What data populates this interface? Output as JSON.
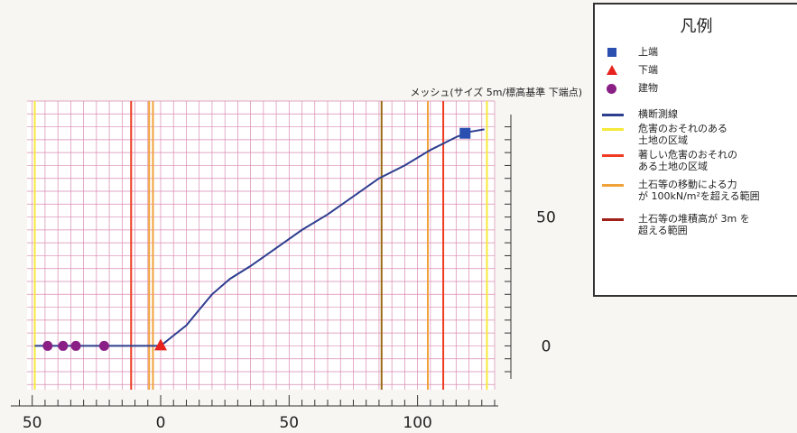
{
  "chart_data": {
    "type": "line",
    "title": "メッシュ(サイズ 5m/標高基準 下端点)",
    "xlabel": "",
    "ylabel": "",
    "xlim": [
      -52,
      130
    ],
    "ylim": [
      -17,
      95
    ],
    "grid": true,
    "x_ticks": [
      {
        "value": -50,
        "label": "50"
      },
      {
        "value": 0,
        "label": "0"
      },
      {
        "value": 50,
        "label": "50"
      },
      {
        "value": 100,
        "label": "100"
      }
    ],
    "y_ticks": [
      {
        "value": 0,
        "label": "0"
      },
      {
        "value": 50,
        "label": "50"
      }
    ],
    "series": [
      {
        "name": "横断測線",
        "color": "#2e3e8f",
        "points": [
          [
            -49,
            0
          ],
          [
            -30,
            0
          ],
          [
            -5,
            0
          ],
          [
            0,
            0
          ],
          [
            5,
            4
          ],
          [
            10,
            8
          ],
          [
            15,
            14
          ],
          [
            20,
            20
          ],
          [
            27,
            26
          ],
          [
            35,
            31
          ],
          [
            45,
            38
          ],
          [
            55,
            45
          ],
          [
            65,
            51
          ],
          [
            75,
            58
          ],
          [
            85,
            65
          ],
          [
            95,
            70
          ],
          [
            105,
            76
          ],
          [
            115,
            81
          ],
          [
            120,
            83
          ],
          [
            126,
            84
          ]
        ]
      }
    ],
    "markers": [
      {
        "name": "上端",
        "shape": "square",
        "color": "#2a4fb0",
        "points": [
          [
            118.5,
            82.5
          ]
        ]
      },
      {
        "name": "下端",
        "shape": "triangle",
        "color": "#e8221c",
        "points": [
          [
            0,
            0
          ]
        ]
      },
      {
        "name": "建物",
        "shape": "circle",
        "color": "#8a1f86",
        "points": [
          [
            -44,
            0
          ],
          [
            -38,
            0
          ],
          [
            -33,
            0
          ],
          [
            -22,
            0
          ]
        ]
      }
    ],
    "vertical_lines": [
      {
        "category": "危害のおそれのある土地の区域",
        "color": "#f5ea3a",
        "x": [
          -49,
          127
        ]
      },
      {
        "category": "著しい危害のおそれのある土地の区域",
        "color": "#ee3b22",
        "x": [
          -11.5,
          110
        ]
      },
      {
        "category": "土石等の移動による力が100kN/m²を超える範囲",
        "color": "#f0a23a",
        "x": [
          -4.5,
          -3,
          104
        ]
      },
      {
        "category": "土石等の堆積高が3mを超える範囲",
        "color": "#9a6a16",
        "x": [
          86
        ]
      }
    ]
  },
  "legend": {
    "title": "凡例",
    "items": [
      {
        "label": "上端",
        "symbol": "square",
        "color": "#2a4fb0"
      },
      {
        "label": "下端",
        "symbol": "triangle",
        "color": "#e8221c"
      },
      {
        "label": "建物",
        "symbol": "circle",
        "color": "#8a1f86"
      },
      {
        "label": "横断測線",
        "symbol": "line",
        "color": "#2e3e8f"
      },
      {
        "label": "危害のおそれのある\n土地の区域",
        "symbol": "line",
        "color": "#f5ea3a"
      },
      {
        "label": "著しい危害のおそれの\nある土地の区域",
        "symbol": "line",
        "color": "#ee3b22"
      },
      {
        "label": "土石等の移動による力\nが 100kN/m²を超える範囲",
        "symbol": "line",
        "color": "#f0a23a"
      },
      {
        "label": "土石等の堆積高が 3m を\n超える範囲",
        "symbol": "line",
        "color": "#a0201a"
      }
    ]
  }
}
